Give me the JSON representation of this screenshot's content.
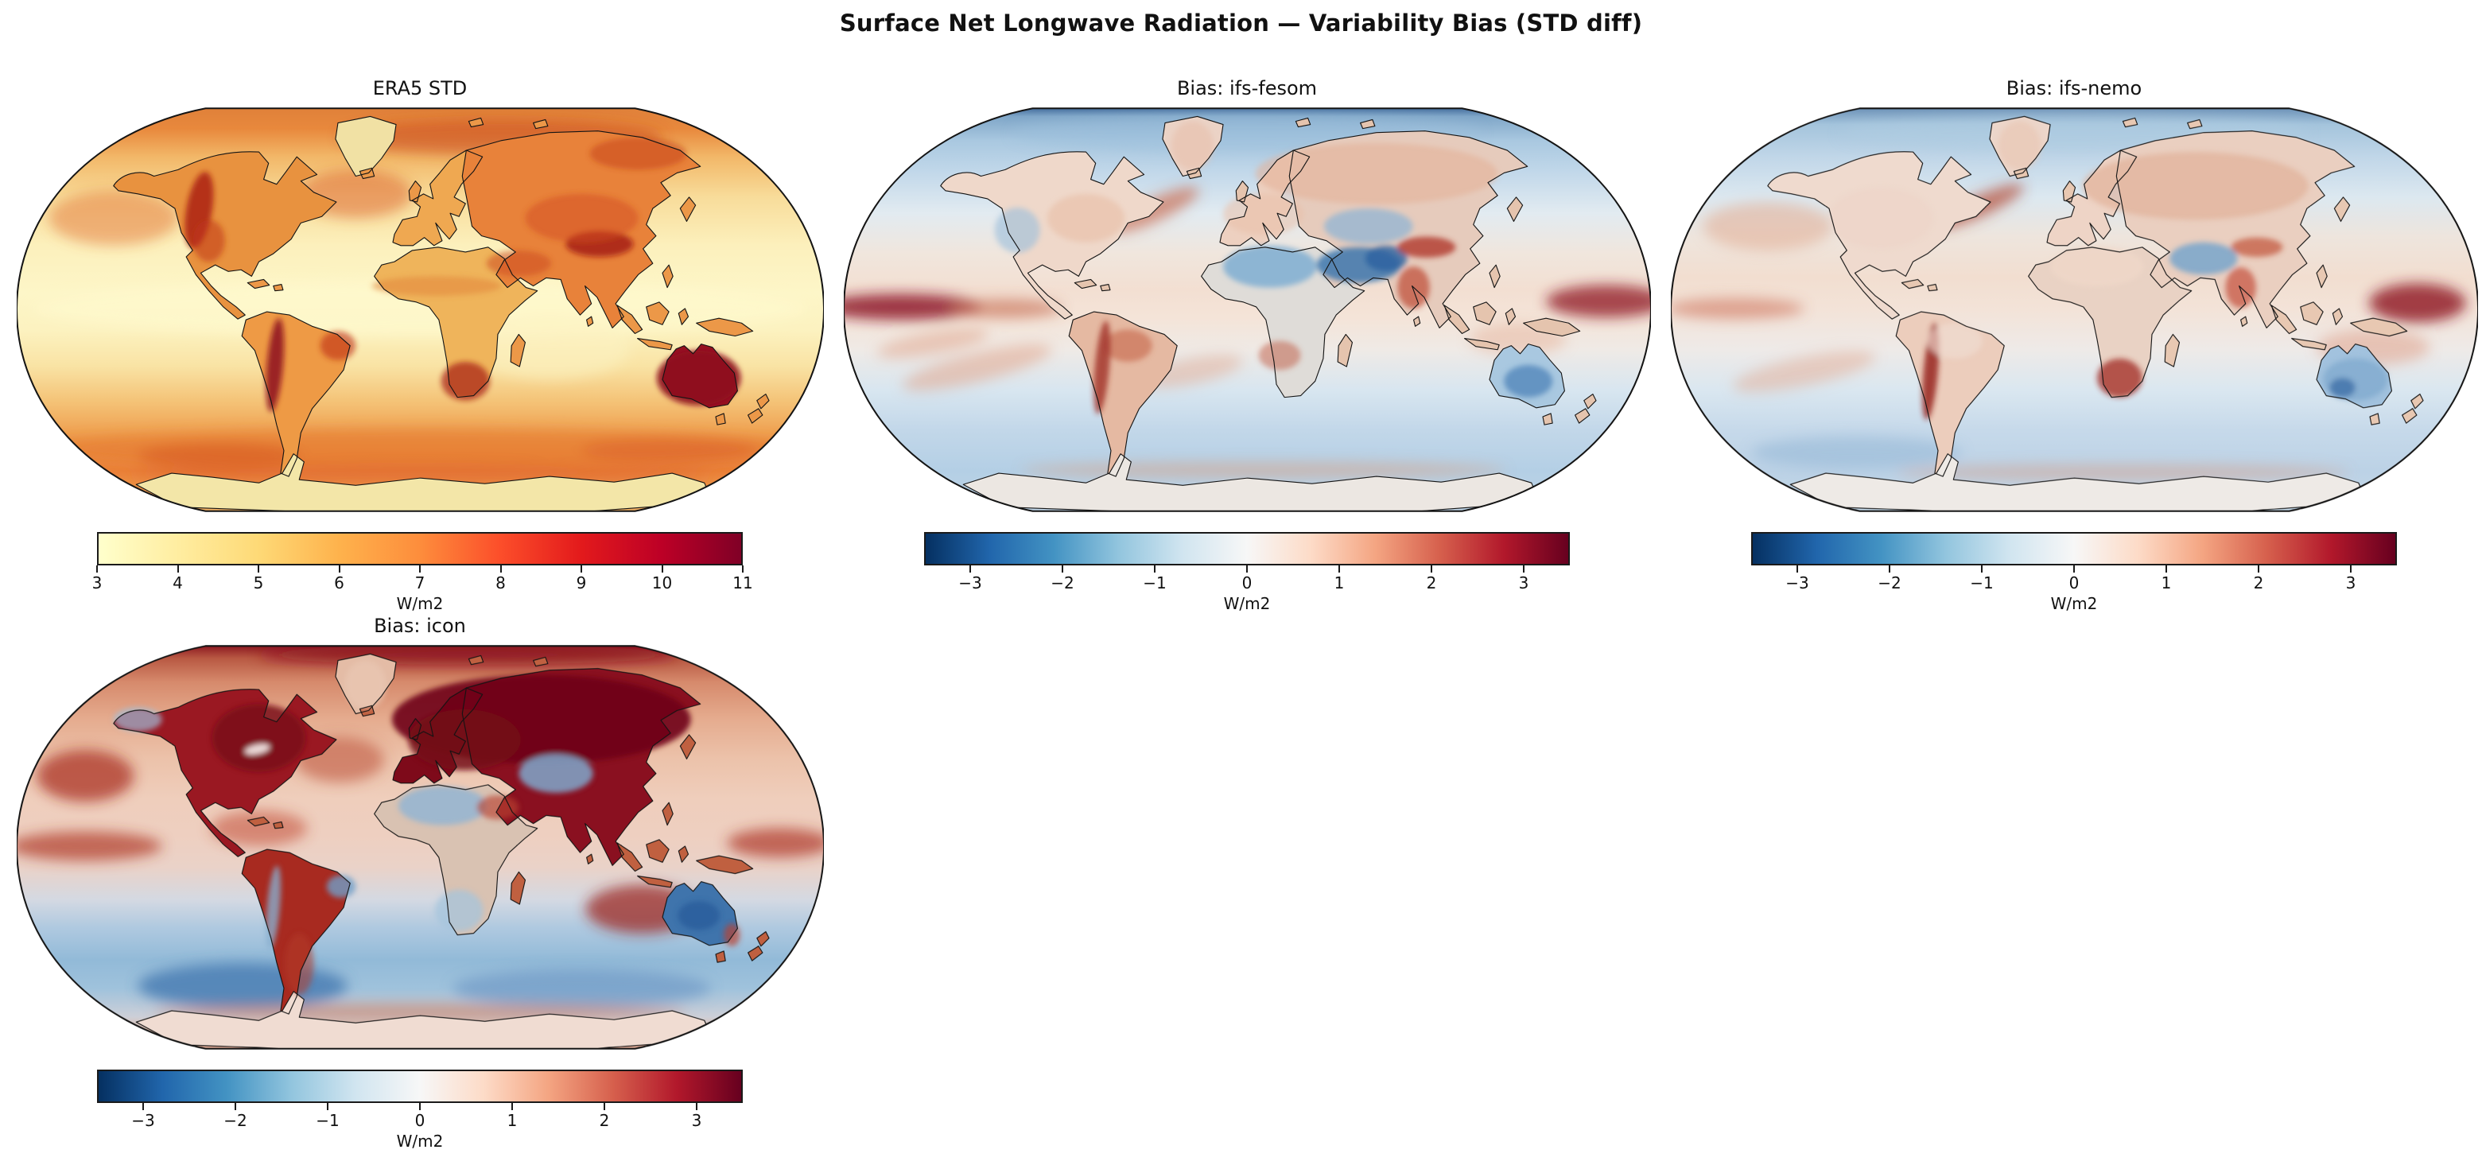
{
  "figure": {
    "title": "Surface Net Longwave Radiation — Variability Bias (STD diff)"
  },
  "chart_data": [
    {
      "type": "heatmap",
      "projection": "Robinson world map",
      "title": "ERA5 STD",
      "units": "W/m2",
      "colormap": "YlOrRd",
      "colormap_stops": [
        "#ffffcc",
        "#ffeda0",
        "#fed976",
        "#feb24c",
        "#fd8d3c",
        "#fc4e2a",
        "#e31a1c",
        "#bd0026",
        "#800026"
      ],
      "vmin": 3,
      "vmax": 11,
      "colorbar_ticks": [
        3,
        4,
        5,
        6,
        7,
        8,
        9,
        10,
        11
      ],
      "colorbar_tick_labels": [
        "3",
        "4",
        "5",
        "6",
        "7",
        "8",
        "9",
        "10",
        "11"
      ],
      "description": "Standard deviation of ERA5 surface net longwave radiation. Tropical oceans ~3-5 W/m2 (pale yellow); mid/high-latitude oceans and most land 6-9 W/m2 (orange); Rockies, Andes, Tibet, southern Africa and especially Australia 10-11 W/m2 (dark red)."
    },
    {
      "type": "heatmap",
      "projection": "Robinson world map",
      "title": "Bias: ifs-fesom",
      "units": "W/m2",
      "colormap": "RdBu_r",
      "colormap_stops": [
        "#053061",
        "#2166ac",
        "#4393c3",
        "#92c5de",
        "#d1e5f0",
        "#f7f7f7",
        "#fddbc7",
        "#f4a582",
        "#d6604d",
        "#b2182b",
        "#67001f"
      ],
      "vmin": -3.5,
      "vmax": 3.5,
      "colorbar_ticks": [
        -3,
        -2,
        -1,
        0,
        1,
        2,
        3
      ],
      "colorbar_tick_labels": [
        "−3",
        "−2",
        "−1",
        "0",
        "1",
        "2",
        "3"
      ],
      "description": "STD bias of ifs-fesom vs ERA5: mostly weak mottled bias; strong positive (dark red) equatorial Pacific bands at map edges, N Atlantic storm track and Andes/Amazon patches; strong negative (blue) over Sahara, Arabia-Pakistan, central Asia and Australia; southern oceans weakly negative."
    },
    {
      "type": "heatmap",
      "projection": "Robinson world map",
      "title": "Bias: ifs-nemo",
      "units": "W/m2",
      "colormap": "RdBu_r",
      "colormap_stops": [
        "#053061",
        "#2166ac",
        "#4393c3",
        "#92c5de",
        "#d1e5f0",
        "#f7f7f7",
        "#fddbc7",
        "#f4a582",
        "#d6604d",
        "#b2182b",
        "#67001f"
      ],
      "vmin": -3.5,
      "vmax": 3.5,
      "colorbar_ticks": [
        -3,
        -2,
        -1,
        0,
        1,
        2,
        3
      ],
      "colorbar_tick_labels": [
        "−3",
        "−2",
        "−1",
        "0",
        "1",
        "2",
        "3"
      ],
      "description": "STD bias of ifs-nemo vs ERA5: weak pinkish positive bias over NH oceans and land; dark-red west Pacific equatorial patch, N Atlantic streak, Andes and southern Africa; blue negative over Pakistan/central Asia, Australia and southern high-latitude oceans."
    },
    {
      "type": "heatmap",
      "projection": "Robinson world map",
      "title": "Bias: icon",
      "units": "W/m2",
      "colormap": "RdBu_r",
      "colormap_stops": [
        "#053061",
        "#2166ac",
        "#4393c3",
        "#92c5de",
        "#d1e5f0",
        "#f7f7f7",
        "#fddbc7",
        "#f4a582",
        "#d6604d",
        "#b2182b",
        "#67001f"
      ],
      "vmin": -3.5,
      "vmax": 3.5,
      "colorbar_ticks": [
        -3,
        -2,
        -1,
        0,
        1,
        2,
        3
      ],
      "colorbar_tick_labels": [
        "−3",
        "−2",
        "−1",
        "0",
        "1",
        "2",
        "3"
      ],
      "description": "STD bias of icon vs ERA5: strong positive (dark maroon) over Eurasia, eastern North America, Amazon and NH/tropical oceans; strong negative (blue) over Sahara, central Asia, Andes, southern Africa, Australia and the Southern Ocean belt."
    }
  ]
}
